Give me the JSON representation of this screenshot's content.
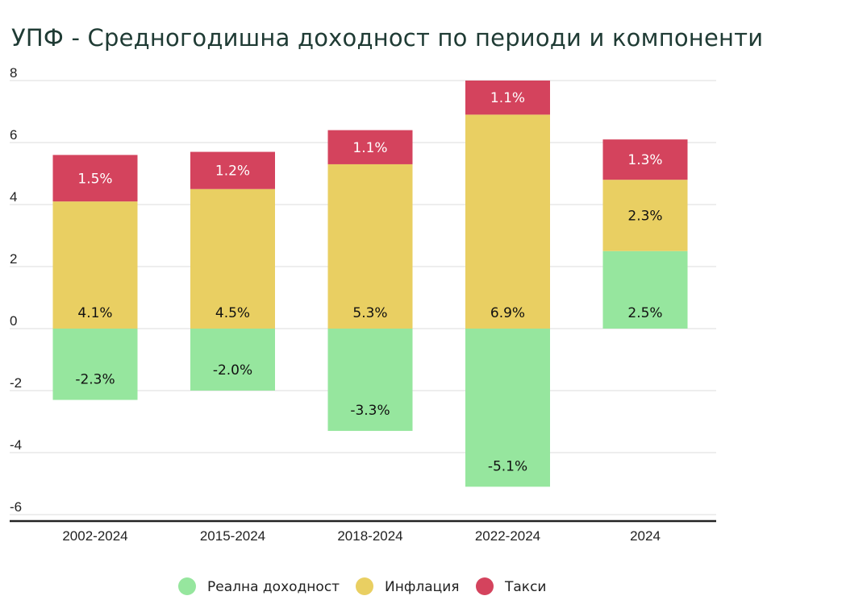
{
  "chart_data": {
    "type": "bar",
    "stacked": true,
    "title": "УПФ - Средногодишна доходност по периоди и компоненти",
    "xlabel": "",
    "ylabel": "",
    "ylim": [
      -6.5,
      8.2
    ],
    "yticks": [
      8,
      6,
      4,
      2,
      0,
      -2,
      -4,
      -6
    ],
    "grid": true,
    "legend_position": "bottom-center",
    "categories": [
      "2002-2024",
      "2015-2024",
      "2018-2024",
      "2022-2024",
      "2024"
    ],
    "series": [
      {
        "name": "Реална доходност",
        "color": "#96e69e",
        "text_color": "#111111",
        "values": [
          -2.3,
          -2.0,
          -3.3,
          -5.1,
          2.5
        ],
        "labels": [
          "-2.3%",
          "-2.0%",
          "-3.3%",
          "-5.1%",
          "2.5%"
        ]
      },
      {
        "name": "Инфлация",
        "color": "#e9cf62",
        "text_color": "#111111",
        "values": [
          4.1,
          4.5,
          5.3,
          6.9,
          2.3
        ],
        "labels": [
          "4.1%",
          "4.5%",
          "5.3%",
          "6.9%",
          "2.3%"
        ]
      },
      {
        "name": "Такси",
        "color": "#d4435d",
        "text_color": "#ffffff",
        "values": [
          1.5,
          1.2,
          1.1,
          1.1,
          1.3
        ],
        "labels": [
          "1.5%",
          "1.2%",
          "1.1%",
          "1.1%",
          "1.3%"
        ]
      }
    ]
  }
}
